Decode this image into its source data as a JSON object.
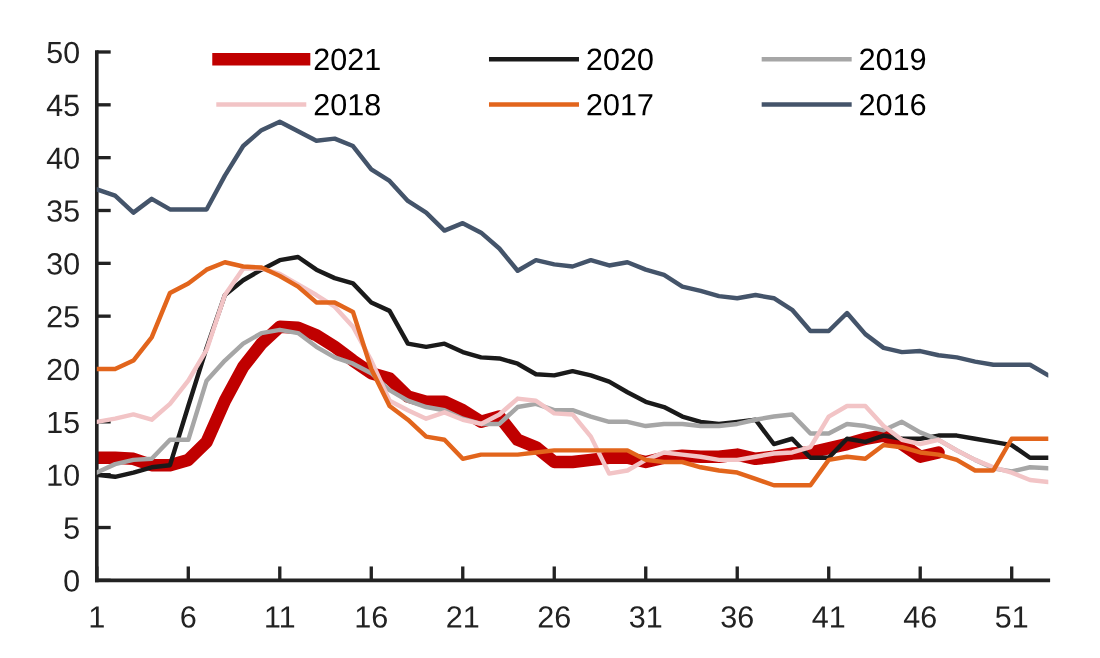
{
  "chart_data": {
    "type": "line",
    "x": [
      1,
      2,
      3,
      4,
      5,
      6,
      7,
      8,
      9,
      10,
      11,
      12,
      13,
      14,
      15,
      16,
      17,
      18,
      19,
      20,
      21,
      22,
      23,
      24,
      25,
      26,
      27,
      28,
      29,
      30,
      31,
      32,
      33,
      34,
      35,
      36,
      37,
      38,
      39,
      40,
      41,
      42,
      43,
      44,
      45,
      46,
      47,
      48,
      49,
      50,
      51,
      52,
      53
    ],
    "series": [
      {
        "name": "2021",
        "color": "#c00000",
        "values": [
          11.6,
          11.6,
          11.5,
          10.9,
          10.9,
          11.4,
          13.1,
          17.0,
          20.2,
          22.4,
          24.0,
          23.9,
          23.2,
          22.1,
          20.8,
          19.6,
          19.1,
          17.4,
          16.9,
          16.9,
          16.1,
          15.0,
          15.5,
          13.3,
          12.6,
          11.2,
          11.2,
          11.4,
          11.6,
          11.6,
          11.2,
          11.6,
          11.8,
          11.7,
          11.7,
          11.9,
          11.5,
          11.7,
          12.0,
          12.1,
          12.5,
          12.9,
          13.4,
          13.7,
          12.9,
          11.7,
          12.1,
          null,
          null,
          null,
          null,
          null,
          null
        ]
      },
      {
        "name": "2020",
        "color": "#1a1a1a",
        "values": [
          10.0,
          9.8,
          10.2,
          10.7,
          10.9,
          16.5,
          22.0,
          27.0,
          28.4,
          29.4,
          30.3,
          30.6,
          29.4,
          28.6,
          28.1,
          26.3,
          25.5,
          22.4,
          22.1,
          22.4,
          21.6,
          21.1,
          21.0,
          20.5,
          19.5,
          19.4,
          19.8,
          19.4,
          18.8,
          17.8,
          16.9,
          16.4,
          15.5,
          15.0,
          14.8,
          15.0,
          15.2,
          12.9,
          13.4,
          11.6,
          11.6,
          13.4,
          13.1,
          13.7,
          13.4,
          13.4,
          13.7,
          13.7,
          13.4,
          13.1,
          12.8,
          11.6,
          11.6
        ]
      },
      {
        "name": "2019",
        "color": "#a6a6a6",
        "values": [
          10.2,
          11.0,
          11.4,
          11.5,
          13.3,
          13.3,
          18.9,
          20.8,
          22.4,
          23.4,
          23.7,
          23.4,
          22.1,
          21.1,
          20.5,
          19.6,
          18.0,
          17.0,
          16.4,
          16.1,
          15.3,
          14.8,
          14.8,
          16.4,
          16.7,
          16.1,
          16.1,
          15.5,
          15.0,
          15.0,
          14.6,
          14.8,
          14.8,
          14.6,
          14.6,
          14.8,
          15.2,
          15.5,
          15.7,
          13.9,
          13.9,
          14.8,
          14.6,
          14.2,
          15.0,
          14.0,
          13.3,
          12.3,
          11.4,
          10.6,
          10.3,
          10.7,
          10.6
        ]
      },
      {
        "name": "2018",
        "color": "#f2c4c6",
        "values": [
          15.0,
          15.3,
          15.7,
          15.2,
          16.7,
          18.9,
          21.8,
          27.0,
          29.5,
          29.5,
          29.0,
          28.0,
          27.0,
          25.9,
          24.0,
          20.8,
          17.0,
          16.1,
          15.3,
          15.9,
          15.2,
          14.8,
          15.7,
          17.2,
          17.0,
          15.8,
          15.7,
          13.6,
          10.1,
          10.4,
          11.4,
          12.1,
          11.9,
          11.7,
          11.4,
          11.4,
          11.7,
          12.0,
          12.1,
          12.6,
          15.5,
          16.5,
          16.5,
          14.6,
          13.3,
          12.9,
          13.3,
          12.3,
          11.4,
          10.7,
          10.2,
          9.5,
          9.3
        ]
      },
      {
        "name": "2017",
        "color": "#e2651c",
        "values": [
          20.0,
          20.0,
          20.8,
          23.0,
          27.2,
          28.1,
          29.4,
          30.1,
          29.7,
          29.6,
          28.8,
          27.8,
          26.3,
          26.3,
          25.4,
          20.0,
          16.5,
          15.2,
          13.6,
          13.3,
          11.5,
          11.9,
          11.9,
          11.9,
          12.1,
          12.3,
          12.3,
          12.3,
          12.3,
          12.3,
          11.4,
          11.2,
          11.2,
          10.7,
          10.4,
          10.2,
          9.6,
          9.0,
          9.0,
          9.0,
          11.4,
          11.7,
          11.5,
          12.8,
          12.6,
          12.1,
          11.9,
          11.4,
          10.4,
          10.4,
          13.4,
          13.4,
          13.4
        ]
      },
      {
        "name": "2016",
        "color": "#44546a",
        "values": [
          37.0,
          36.4,
          34.8,
          36.1,
          35.1,
          35.1,
          35.1,
          38.3,
          41.1,
          42.6,
          43.4,
          42.5,
          41.6,
          41.8,
          41.1,
          38.9,
          37.8,
          35.9,
          34.8,
          33.1,
          33.8,
          32.9,
          31.4,
          29.3,
          30.3,
          29.9,
          29.7,
          30.3,
          29.8,
          30.1,
          29.4,
          28.9,
          27.8,
          27.4,
          26.9,
          26.7,
          27.0,
          26.7,
          25.6,
          23.6,
          23.6,
          25.3,
          23.3,
          22.0,
          21.6,
          21.7,
          21.3,
          21.1,
          20.7,
          20.4,
          20.4,
          20.4,
          19.4
        ]
      }
    ],
    "xlim": [
      1,
      53
    ],
    "xticks": [
      1,
      6,
      11,
      16,
      21,
      26,
      31,
      36,
      41,
      46,
      51
    ],
    "ylim": [
      0,
      50
    ],
    "yticks": [
      0,
      5,
      10,
      15,
      20,
      25,
      30,
      35,
      40,
      45,
      50
    ],
    "grid": false,
    "legend": "top",
    "marker": "none",
    "line_style": "solid"
  }
}
